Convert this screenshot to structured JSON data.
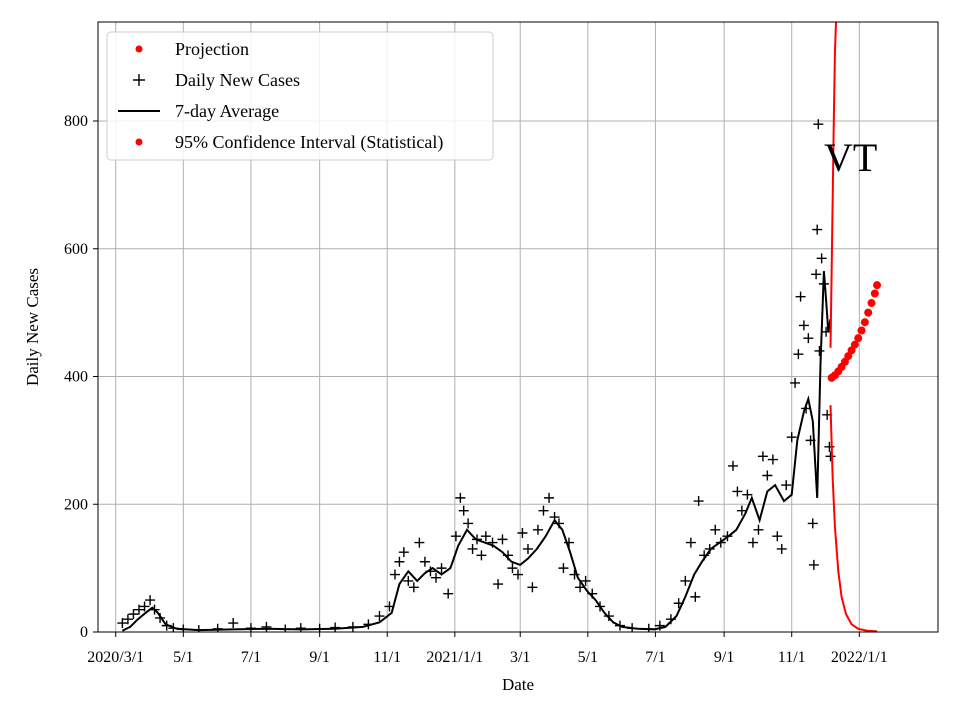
{
  "chart_data": {
    "type": "line",
    "title": "",
    "xlabel": "Date",
    "ylabel": "Daily New Cases",
    "annotation": "VT",
    "grid": true,
    "legend_position": "top-left",
    "x_range": [
      "2020-02-14",
      "2022-03-13"
    ],
    "ylim": [
      0,
      955
    ],
    "y_ticks": [
      0,
      200,
      400,
      600,
      800
    ],
    "x_ticks": [
      {
        "date": "2020-03-01",
        "label": "2020/3/1"
      },
      {
        "date": "2020-05-01",
        "label": "5/1"
      },
      {
        "date": "2020-07-01",
        "label": "7/1"
      },
      {
        "date": "2020-09-01",
        "label": "9/1"
      },
      {
        "date": "2020-11-01",
        "label": "11/1"
      },
      {
        "date": "2021-01-01",
        "label": "2021/1/1"
      },
      {
        "date": "2021-03-01",
        "label": "3/1"
      },
      {
        "date": "2021-05-01",
        "label": "5/1"
      },
      {
        "date": "2021-07-01",
        "label": "7/1"
      },
      {
        "date": "2021-09-01",
        "label": "9/1"
      },
      {
        "date": "2021-11-01",
        "label": "11/1"
      },
      {
        "date": "2022-01-01",
        "label": "2022/1/1"
      }
    ],
    "colors": {
      "projection": "#ff0000",
      "daily": "#000000",
      "average": "#000000",
      "ci": "#ff0000",
      "grid": "#b0b0b0"
    },
    "legend": [
      {
        "label": "Projection",
        "marker": "dot",
        "color": "#ff0000"
      },
      {
        "label": "Daily New Cases",
        "marker": "plus",
        "color": "#000000"
      },
      {
        "label": "7-day Average",
        "marker": "line",
        "color": "#000000"
      },
      {
        "label": "95% Confidence Interval (Statistical)",
        "marker": "dot",
        "color": "#ff0000"
      }
    ],
    "seven_day_average": [
      [
        "2020-03-07",
        2
      ],
      [
        "2020-03-14",
        8
      ],
      [
        "2020-03-21",
        20
      ],
      [
        "2020-03-28",
        30
      ],
      [
        "2020-04-03",
        38
      ],
      [
        "2020-04-08",
        30
      ],
      [
        "2020-04-15",
        12
      ],
      [
        "2020-04-25",
        5
      ],
      [
        "2020-05-15",
        3
      ],
      [
        "2020-06-15",
        4
      ],
      [
        "2020-07-15",
        5
      ],
      [
        "2020-08-15",
        4
      ],
      [
        "2020-09-15",
        5
      ],
      [
        "2020-10-10",
        8
      ],
      [
        "2020-10-25",
        15
      ],
      [
        "2020-11-05",
        30
      ],
      [
        "2020-11-12",
        75
      ],
      [
        "2020-11-20",
        95
      ],
      [
        "2020-11-28",
        80
      ],
      [
        "2020-12-05",
        92
      ],
      [
        "2020-12-12",
        100
      ],
      [
        "2020-12-20",
        90
      ],
      [
        "2020-12-28",
        100
      ],
      [
        "2021-01-04",
        135
      ],
      [
        "2021-01-12",
        160
      ],
      [
        "2021-01-20",
        145
      ],
      [
        "2021-01-28",
        140
      ],
      [
        "2021-02-05",
        135
      ],
      [
        "2021-02-13",
        125
      ],
      [
        "2021-02-21",
        110
      ],
      [
        "2021-03-01",
        105
      ],
      [
        "2021-03-08",
        115
      ],
      [
        "2021-03-16",
        130
      ],
      [
        "2021-03-24",
        150
      ],
      [
        "2021-04-01",
        175
      ],
      [
        "2021-04-08",
        160
      ],
      [
        "2021-04-15",
        125
      ],
      [
        "2021-04-22",
        85
      ],
      [
        "2021-04-30",
        65
      ],
      [
        "2021-05-08",
        50
      ],
      [
        "2021-05-16",
        30
      ],
      [
        "2021-05-24",
        15
      ],
      [
        "2021-06-01",
        8
      ],
      [
        "2021-06-15",
        5
      ],
      [
        "2021-06-30",
        4
      ],
      [
        "2021-07-10",
        8
      ],
      [
        "2021-07-20",
        25
      ],
      [
        "2021-07-28",
        55
      ],
      [
        "2021-08-05",
        90
      ],
      [
        "2021-08-12",
        110
      ],
      [
        "2021-08-20",
        130
      ],
      [
        "2021-08-28",
        140
      ],
      [
        "2021-09-05",
        150
      ],
      [
        "2021-09-12",
        160
      ],
      [
        "2021-09-20",
        185
      ],
      [
        "2021-09-26",
        210
      ],
      [
        "2021-10-03",
        175
      ],
      [
        "2021-10-10",
        220
      ],
      [
        "2021-10-17",
        230
      ],
      [
        "2021-10-25",
        205
      ],
      [
        "2021-11-01",
        215
      ],
      [
        "2021-11-06",
        300
      ],
      [
        "2021-11-12",
        345
      ],
      [
        "2021-11-16",
        365
      ],
      [
        "2021-11-20",
        330
      ],
      [
        "2021-11-24",
        210
      ],
      [
        "2021-11-27",
        420
      ],
      [
        "2021-11-30",
        565
      ],
      [
        "2021-12-02",
        520
      ],
      [
        "2021-12-04",
        470
      ],
      [
        "2021-12-06",
        490
      ]
    ],
    "daily_new_cases": [
      [
        "2020-03-07",
        14
      ],
      [
        "2020-03-12",
        20
      ],
      [
        "2020-03-17",
        28
      ],
      [
        "2020-03-22",
        35
      ],
      [
        "2020-03-27",
        40
      ],
      [
        "2020-04-01",
        50
      ],
      [
        "2020-04-05",
        35
      ],
      [
        "2020-04-10",
        22
      ],
      [
        "2020-04-16",
        10
      ],
      [
        "2020-04-22",
        6
      ],
      [
        "2020-05-01",
        4
      ],
      [
        "2020-05-15",
        3
      ],
      [
        "2020-06-01",
        5
      ],
      [
        "2020-06-15",
        14
      ],
      [
        "2020-07-01",
        6
      ],
      [
        "2020-07-15",
        8
      ],
      [
        "2020-08-01",
        4
      ],
      [
        "2020-08-15",
        6
      ],
      [
        "2020-09-01",
        5
      ],
      [
        "2020-09-15",
        7
      ],
      [
        "2020-10-01",
        8
      ],
      [
        "2020-10-15",
        12
      ],
      [
        "2020-10-25",
        25
      ],
      [
        "2020-11-03",
        40
      ],
      [
        "2020-11-08",
        90
      ],
      [
        "2020-11-12",
        110
      ],
      [
        "2020-11-16",
        125
      ],
      [
        "2020-11-20",
        80
      ],
      [
        "2020-11-25",
        70
      ],
      [
        "2020-11-30",
        140
      ],
      [
        "2020-12-05",
        110
      ],
      [
        "2020-12-10",
        95
      ],
      [
        "2020-12-15",
        85
      ],
      [
        "2020-12-20",
        100
      ],
      [
        "2020-12-26",
        60
      ],
      [
        "2021-01-02",
        150
      ],
      [
        "2021-01-06",
        210
      ],
      [
        "2021-01-09",
        190
      ],
      [
        "2021-01-13",
        170
      ],
      [
        "2021-01-17",
        130
      ],
      [
        "2021-01-21",
        145
      ],
      [
        "2021-01-25",
        120
      ],
      [
        "2021-01-29",
        150
      ],
      [
        "2021-02-04",
        140
      ],
      [
        "2021-02-09",
        75
      ],
      [
        "2021-02-13",
        145
      ],
      [
        "2021-02-18",
        120
      ],
      [
        "2021-02-22",
        100
      ],
      [
        "2021-02-27",
        90
      ],
      [
        "2021-03-03",
        155
      ],
      [
        "2021-03-08",
        130
      ],
      [
        "2021-03-12",
        70
      ],
      [
        "2021-03-17",
        160
      ],
      [
        "2021-03-22",
        190
      ],
      [
        "2021-03-27",
        210
      ],
      [
        "2021-04-01",
        180
      ],
      [
        "2021-04-05",
        170
      ],
      [
        "2021-04-09",
        100
      ],
      [
        "2021-04-14",
        140
      ],
      [
        "2021-04-19",
        90
      ],
      [
        "2021-04-24",
        70
      ],
      [
        "2021-04-29",
        80
      ],
      [
        "2021-05-05",
        60
      ],
      [
        "2021-05-12",
        40
      ],
      [
        "2021-05-20",
        25
      ],
      [
        "2021-05-30",
        10
      ],
      [
        "2021-06-10",
        6
      ],
      [
        "2021-06-25",
        5
      ],
      [
        "2021-07-05",
        10
      ],
      [
        "2021-07-15",
        20
      ],
      [
        "2021-07-22",
        45
      ],
      [
        "2021-07-28",
        80
      ],
      [
        "2021-08-02",
        140
      ],
      [
        "2021-08-06",
        55
      ],
      [
        "2021-08-09",
        205
      ],
      [
        "2021-08-14",
        120
      ],
      [
        "2021-08-19",
        130
      ],
      [
        "2021-08-24",
        160
      ],
      [
        "2021-08-29",
        140
      ],
      [
        "2021-09-04",
        150
      ],
      [
        "2021-09-09",
        260
      ],
      [
        "2021-09-13",
        220
      ],
      [
        "2021-09-17",
        190
      ],
      [
        "2021-09-22",
        215
      ],
      [
        "2021-09-27",
        140
      ],
      [
        "2021-10-02",
        160
      ],
      [
        "2021-10-06",
        275
      ],
      [
        "2021-10-10",
        245
      ],
      [
        "2021-10-15",
        270
      ],
      [
        "2021-10-19",
        150
      ],
      [
        "2021-10-23",
        130
      ],
      [
        "2021-10-27",
        230
      ],
      [
        "2021-11-01",
        305
      ],
      [
        "2021-11-04",
        390
      ],
      [
        "2021-11-07",
        435
      ],
      [
        "2021-11-09",
        525
      ],
      [
        "2021-11-12",
        480
      ],
      [
        "2021-11-14",
        350
      ],
      [
        "2021-11-16",
        460
      ],
      [
        "2021-11-18",
        300
      ],
      [
        "2021-11-20",
        170
      ],
      [
        "2021-11-21",
        105
      ],
      [
        "2021-11-23",
        560
      ],
      [
        "2021-11-24",
        630
      ],
      [
        "2021-11-25",
        795
      ],
      [
        "2021-11-26",
        440
      ],
      [
        "2021-11-28",
        585
      ],
      [
        "2021-11-30",
        545
      ],
      [
        "2021-12-02",
        470
      ],
      [
        "2021-12-03",
        340
      ],
      [
        "2021-12-05",
        290
      ],
      [
        "2021-12-06",
        275
      ]
    ],
    "projection": [
      [
        "2021-12-07",
        398
      ],
      [
        "2021-12-10",
        402
      ],
      [
        "2021-12-13",
        408
      ],
      [
        "2021-12-16",
        415
      ],
      [
        "2021-12-19",
        423
      ],
      [
        "2021-12-22",
        432
      ],
      [
        "2021-12-25",
        441
      ],
      [
        "2021-12-28",
        450
      ],
      [
        "2021-12-31",
        460
      ],
      [
        "2022-01-03",
        472
      ],
      [
        "2022-01-06",
        485
      ],
      [
        "2022-01-09",
        500
      ],
      [
        "2022-01-12",
        515
      ],
      [
        "2022-01-15",
        530
      ],
      [
        "2022-01-17",
        543
      ]
    ],
    "ci_upper": [
      [
        "2021-12-06",
        445
      ],
      [
        "2021-12-07",
        560
      ],
      [
        "2021-12-08",
        680
      ],
      [
        "2021-12-09",
        800
      ],
      [
        "2021-12-10",
        905
      ],
      [
        "2021-12-11",
        955
      ]
    ],
    "ci_lower": [
      [
        "2021-12-06",
        355
      ],
      [
        "2021-12-08",
        240
      ],
      [
        "2021-12-10",
        165
      ],
      [
        "2021-12-13",
        95
      ],
      [
        "2021-12-16",
        55
      ],
      [
        "2021-12-20",
        28
      ],
      [
        "2021-12-25",
        12
      ],
      [
        "2021-12-31",
        5
      ],
      [
        "2022-01-08",
        2
      ],
      [
        "2022-01-17",
        1
      ]
    ]
  }
}
